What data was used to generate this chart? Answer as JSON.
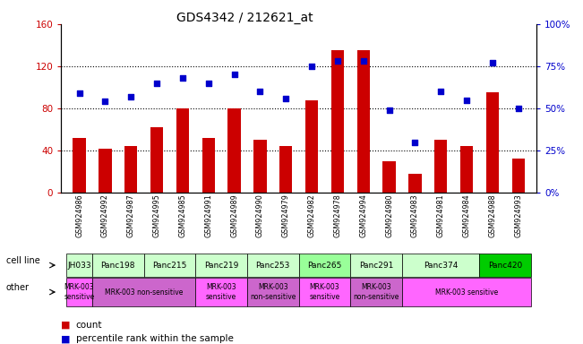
{
  "title": "GDS4342 / 212621_at",
  "gsm_labels": [
    "GSM924986",
    "GSM924992",
    "GSM924987",
    "GSM924995",
    "GSM924985",
    "GSM924991",
    "GSM924989",
    "GSM924990",
    "GSM924979",
    "GSM924982",
    "GSM924978",
    "GSM924994",
    "GSM924980",
    "GSM924983",
    "GSM924981",
    "GSM924984",
    "GSM924988",
    "GSM924993"
  ],
  "bar_values": [
    52,
    42,
    44,
    62,
    80,
    52,
    80,
    50,
    44,
    88,
    135,
    135,
    30,
    18,
    50,
    44,
    95,
    32
  ],
  "dot_values": [
    59,
    54,
    57,
    65,
    68,
    65,
    70,
    60,
    56,
    75,
    78,
    78,
    49,
    30,
    60,
    55,
    77,
    50
  ],
  "bar_color": "#cc0000",
  "dot_color": "#0000cc",
  "ylim_left": [
    0,
    160
  ],
  "ylim_right": [
    0,
    100
  ],
  "yticks_left": [
    0,
    40,
    80,
    120,
    160
  ],
  "yticks_right": [
    0,
    25,
    50,
    75,
    100
  ],
  "cell_line_row": {
    "label": "cell line",
    "groups": [
      {
        "name": "JH033",
        "start": 0,
        "end": 1,
        "color": "#ccffcc"
      },
      {
        "name": "Panc198",
        "start": 1,
        "end": 3,
        "color": "#ccffcc"
      },
      {
        "name": "Panc215",
        "start": 3,
        "end": 5,
        "color": "#ccffcc"
      },
      {
        "name": "Panc219",
        "start": 5,
        "end": 7,
        "color": "#ccffcc"
      },
      {
        "name": "Panc253",
        "start": 7,
        "end": 9,
        "color": "#ccffcc"
      },
      {
        "name": "Panc265",
        "start": 9,
        "end": 11,
        "color": "#99ff99"
      },
      {
        "name": "Panc291",
        "start": 11,
        "end": 13,
        "color": "#ccffcc"
      },
      {
        "name": "Panc374",
        "start": 13,
        "end": 16,
        "color": "#ccffcc"
      },
      {
        "name": "Panc420",
        "start": 16,
        "end": 18,
        "color": "#00cc00"
      }
    ]
  },
  "other_row": {
    "label": "other",
    "groups": [
      {
        "name": "MRK-003\nsensitive",
        "start": 0,
        "end": 1,
        "color": "#ff66ff"
      },
      {
        "name": "MRK-003 non-sensitive",
        "start": 1,
        "end": 5,
        "color": "#cc66cc"
      },
      {
        "name": "MRK-003\nsensitive",
        "start": 5,
        "end": 7,
        "color": "#ff66ff"
      },
      {
        "name": "MRK-003\nnon-sensitive",
        "start": 7,
        "end": 9,
        "color": "#cc66cc"
      },
      {
        "name": "MRK-003\nsensitive",
        "start": 9,
        "end": 11,
        "color": "#ff66ff"
      },
      {
        "name": "MRK-003\nnon-sensitive",
        "start": 11,
        "end": 13,
        "color": "#cc66cc"
      },
      {
        "name": "MRK-003 sensitive",
        "start": 13,
        "end": 18,
        "color": "#ff66ff"
      }
    ]
  },
  "grid_dotted_at": [
    40,
    80,
    120
  ],
  "grid_color": "black"
}
